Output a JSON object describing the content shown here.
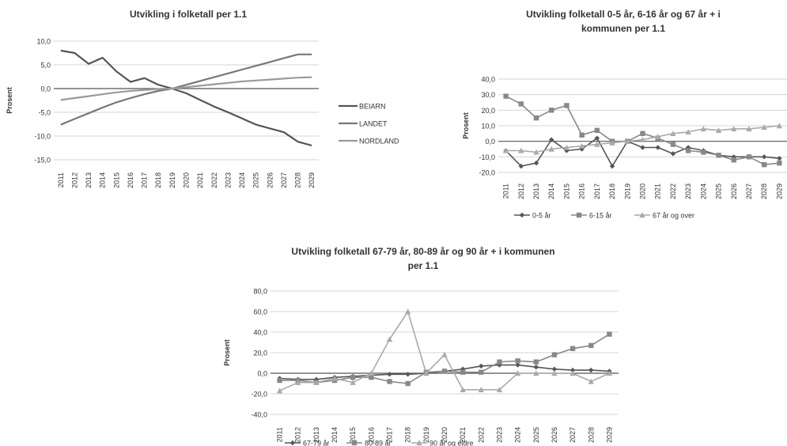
{
  "chart_data": [
    {
      "type": "line",
      "title": "Utvikling i folketall per 1.1",
      "ylabel": "Prosent",
      "ylim": [
        -15,
        10
      ],
      "yticks": [
        "10,0",
        "5,0",
        "0,0",
        "-5,0",
        "-10,0",
        "-15,0"
      ],
      "grid": true,
      "legend": "right",
      "categories": [
        "2011",
        "2012",
        "2013",
        "2014",
        "2015",
        "2016",
        "2017",
        "2018",
        "2019",
        "2020",
        "2021",
        "2022",
        "2023",
        "2024",
        "2025",
        "2026",
        "2027",
        "2028",
        "2029"
      ],
      "series": [
        {
          "name": "BEIARN",
          "color": "#555555",
          "values": [
            8.0,
            7.5,
            5.2,
            6.5,
            3.6,
            1.4,
            2.2,
            0.8,
            0.0,
            -1.0,
            -2.4,
            -3.8,
            -5.0,
            -6.3,
            -7.6,
            -8.4,
            -9.2,
            -11.2,
            -12.0
          ]
        },
        {
          "name": "LANDET",
          "color": "#777777",
          "values": [
            -7.6,
            -6.4,
            -5.2,
            -4.0,
            -2.9,
            -2.0,
            -1.2,
            -0.5,
            0.0,
            0.8,
            1.6,
            2.4,
            3.2,
            4.0,
            4.8,
            5.6,
            6.4,
            7.2,
            7.2
          ]
        },
        {
          "name": "NORDLAND",
          "color": "#9a9a9a",
          "values": [
            -2.4,
            -2.0,
            -1.6,
            -1.2,
            -0.8,
            -0.5,
            -0.3,
            -0.1,
            0.0,
            0.3,
            0.6,
            0.9,
            1.2,
            1.5,
            1.7,
            1.9,
            2.1,
            2.3,
            2.4
          ]
        }
      ]
    },
    {
      "type": "line",
      "title": "Utvikling folketall 0-5 år, 6-16 år og 67 år + i kommunen per 1.1",
      "ylabel": "Prosent",
      "ylim": [
        -20,
        40
      ],
      "yticks": [
        "40,0",
        "30,0",
        "20,0",
        "10,0",
        "0,0",
        "-10,0",
        "-20,0"
      ],
      "grid": true,
      "legend": "bottom",
      "categories": [
        "2011",
        "2012",
        "2013",
        "2014",
        "2015",
        "2016",
        "2017",
        "2018",
        "2019",
        "2020",
        "2021",
        "2022",
        "2023",
        "2024",
        "2025",
        "2026",
        "2027",
        "2028",
        "2029"
      ],
      "series": [
        {
          "name": "0-5 år",
          "color": "#555555",
          "marker": "diamond",
          "values": [
            -6,
            -16,
            -14,
            1,
            -6,
            -5,
            2,
            -16,
            0,
            -4,
            -4,
            -8,
            -4,
            -6,
            -9,
            -10,
            -10,
            -10,
            -11
          ]
        },
        {
          "name": "6-15 år",
          "color": "#888888",
          "marker": "square",
          "values": [
            29,
            24,
            15,
            20,
            23,
            4,
            7,
            0,
            0,
            5,
            2,
            -2,
            -6,
            -7,
            -9,
            -12,
            -10,
            -15,
            -14
          ]
        },
        {
          "name": "67 år og over",
          "color": "#aaaaaa",
          "marker": "triangle",
          "values": [
            -6,
            -6,
            -7,
            -5,
            -4,
            -3,
            -2,
            -1,
            0,
            1,
            3,
            5,
            6,
            8,
            7,
            8,
            8,
            9,
            10
          ]
        }
      ]
    },
    {
      "type": "line",
      "title": "Utvikling folketall 67-79 år, 80-89 år og 90 år + i kommunen per 1.1",
      "ylabel": "Prosent",
      "ylim": [
        -40,
        80
      ],
      "yticks": [
        "80,0",
        "60,0",
        "40,0",
        "20,0",
        "0,0",
        "-20,0",
        "-40,0"
      ],
      "grid": true,
      "legend": "bottom",
      "categories": [
        "2011",
        "2012",
        "2013",
        "2014",
        "2015",
        "2016",
        "2017",
        "2018",
        "2019",
        "2020",
        "2021",
        "2022",
        "2023",
        "2024",
        "2025",
        "2026",
        "2027",
        "2028",
        "2029"
      ],
      "series": [
        {
          "name": "67-79 år",
          "color": "#555555",
          "marker": "diamond",
          "values": [
            -5,
            -6,
            -6,
            -4,
            -3,
            -2,
            -1,
            -1,
            0,
            2,
            4,
            7,
            8,
            8,
            6,
            4,
            3,
            3,
            2
          ]
        },
        {
          "name": "80-89 år",
          "color": "#888888",
          "marker": "square",
          "values": [
            -7,
            -7,
            -9,
            -7,
            -4,
            -4,
            -8,
            -10,
            1,
            2,
            1,
            1,
            11,
            12,
            11,
            18,
            24,
            27,
            38
          ]
        },
        {
          "name": "90 år og eldre",
          "color": "#aaaaaa",
          "marker": "triangle",
          "values": [
            -17,
            -9,
            -9,
            -5,
            -9,
            0,
            33,
            60,
            0,
            18,
            -16,
            -16,
            -16,
            0,
            0,
            0,
            0,
            -8,
            0
          ]
        }
      ]
    }
  ]
}
